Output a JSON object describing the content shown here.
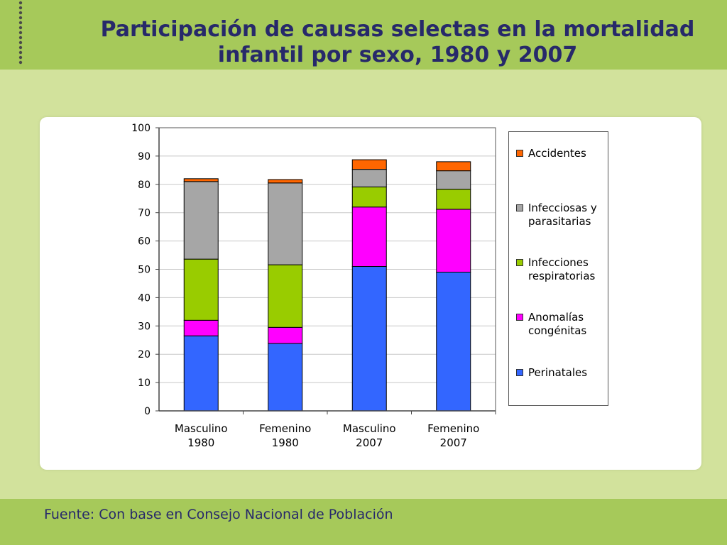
{
  "title": "Participación de causas selectas en la mortalidad infantil por sexo, 1980 y 2007",
  "source": "Fuente: Con base en Consejo Nacional de Población",
  "chart_data": {
    "type": "bar",
    "stacked": true,
    "categories": [
      [
        "Masculino",
        "1980"
      ],
      [
        "Femenino",
        "1980"
      ],
      [
        "Masculino",
        "2007"
      ],
      [
        "Femenino",
        "2007"
      ]
    ],
    "ylim": [
      0,
      100
    ],
    "yticks": [
      0,
      10,
      20,
      30,
      40,
      50,
      60,
      70,
      80,
      90,
      100
    ],
    "grid": true,
    "legend_position": "right",
    "series": [
      {
        "name": "Perinatales",
        "color": "#3366ff",
        "values": [
          26.5,
          23.8,
          51.0,
          49.0
        ]
      },
      {
        "name": "Anomalías congénitas",
        "color": "#ff00ff",
        "values": [
          5.5,
          5.7,
          21.0,
          22.2
        ]
      },
      {
        "name": "Infecciones respiratorias",
        "color": "#99cc00",
        "values": [
          21.6,
          22.1,
          7.1,
          7.1
        ]
      },
      {
        "name": "Infecciosas y parasitarias",
        "color": "#a6a6a6",
        "values": [
          27.4,
          28.9,
          6.2,
          6.5
        ]
      },
      {
        "name": "Accidentes",
        "color": "#ff6600",
        "values": [
          1.0,
          1.2,
          3.4,
          3.2
        ]
      }
    ],
    "legend_order": [
      4,
      3,
      2,
      1,
      0
    ]
  }
}
